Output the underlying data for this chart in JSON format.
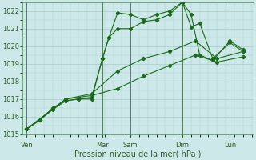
{
  "bg_color": "#cce8e8",
  "plot_bg_color": "#cce8e8",
  "grid_color": "#aacccc",
  "line_color": "#1a6b1a",
  "marker_color": "#1a6b1a",
  "xlabel": "Pression niveau de la mer( hPa )",
  "ylim": [
    1015,
    1022.5
  ],
  "yticks": [
    1015,
    1016,
    1017,
    1018,
    1019,
    1020,
    1021,
    1022
  ],
  "xlabel_fontsize": 7,
  "tick_fontsize": 6,
  "day_labels": [
    "Ven",
    "Mar",
    "Sam",
    "Dim",
    "Lun"
  ],
  "day_positions": [
    0.0,
    0.35,
    0.48,
    0.72,
    0.94
  ],
  "vline_positions": [
    0.0,
    0.35,
    0.48,
    0.72,
    0.94
  ],
  "line1_x": [
    0.0,
    0.06,
    0.12,
    0.18,
    0.24,
    0.3,
    0.35,
    0.38,
    0.42,
    0.48,
    0.54,
    0.6,
    0.66,
    0.72,
    0.76,
    0.8,
    0.86,
    0.94,
    1.0
  ],
  "line1_y": [
    1015.3,
    1015.8,
    1016.4,
    1016.9,
    1017.0,
    1017.0,
    1019.3,
    1020.5,
    1021.9,
    1021.8,
    1021.5,
    1021.8,
    1022.0,
    1022.5,
    1021.8,
    1019.5,
    1019.2,
    1020.3,
    1019.8
  ],
  "line2_x": [
    0.0,
    0.06,
    0.12,
    0.18,
    0.24,
    0.3,
    0.35,
    0.38,
    0.42,
    0.48,
    0.54,
    0.6,
    0.66,
    0.72,
    0.76,
    0.8,
    0.86,
    0.94,
    1.0
  ],
  "line2_y": [
    1015.3,
    1015.8,
    1016.5,
    1016.9,
    1017.0,
    1017.1,
    1019.3,
    1020.5,
    1021.0,
    1021.0,
    1021.4,
    1021.5,
    1021.8,
    1022.5,
    1021.1,
    1021.3,
    1019.3,
    1020.2,
    1019.7
  ],
  "line3_x": [
    0.0,
    0.18,
    0.3,
    0.42,
    0.54,
    0.66,
    0.78,
    0.88,
    1.0
  ],
  "line3_y": [
    1015.3,
    1017.0,
    1017.3,
    1018.6,
    1019.3,
    1019.7,
    1020.3,
    1019.3,
    1019.7
  ],
  "line4_x": [
    0.0,
    0.18,
    0.3,
    0.42,
    0.54,
    0.66,
    0.78,
    0.88,
    1.0
  ],
  "line4_y": [
    1015.3,
    1017.0,
    1017.2,
    1017.6,
    1018.3,
    1018.9,
    1019.5,
    1019.1,
    1019.4
  ]
}
